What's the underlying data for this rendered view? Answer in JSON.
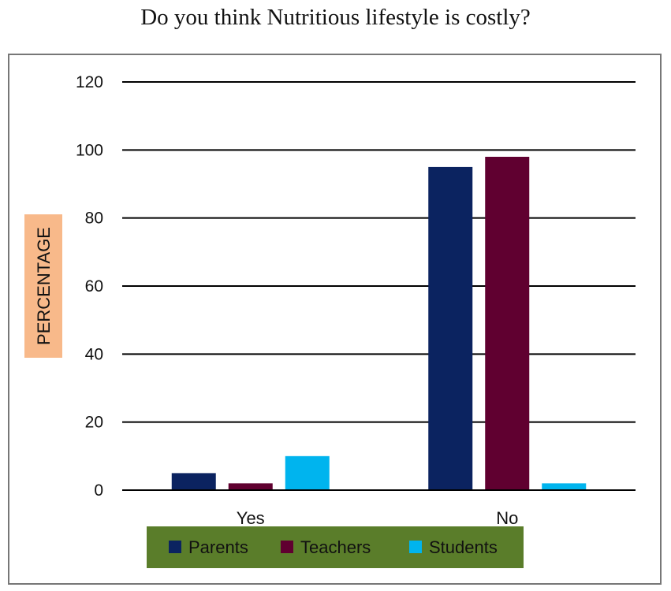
{
  "chart_data": {
    "type": "bar",
    "title": "Do you think Nutritious lifestyle is costly?",
    "ylabel": "PERCENTAGE",
    "xlabel": "",
    "categories": [
      "Yes",
      "No"
    ],
    "series": [
      {
        "name": "Parents",
        "values": [
          5,
          95
        ],
        "color": "#0b2360"
      },
      {
        "name": "Teachers",
        "values": [
          2,
          98
        ],
        "color": "#600030"
      },
      {
        "name": "Students",
        "values": [
          10,
          2
        ],
        "color": "#00b4ee"
      }
    ],
    "ylim": [
      0,
      120
    ],
    "yticks": [
      0,
      20,
      40,
      60,
      80,
      100,
      120
    ],
    "grid": true,
    "legend": "bottom",
    "legend_background": "#5a7d2a",
    "ylabel_background": "#f8b98a"
  }
}
